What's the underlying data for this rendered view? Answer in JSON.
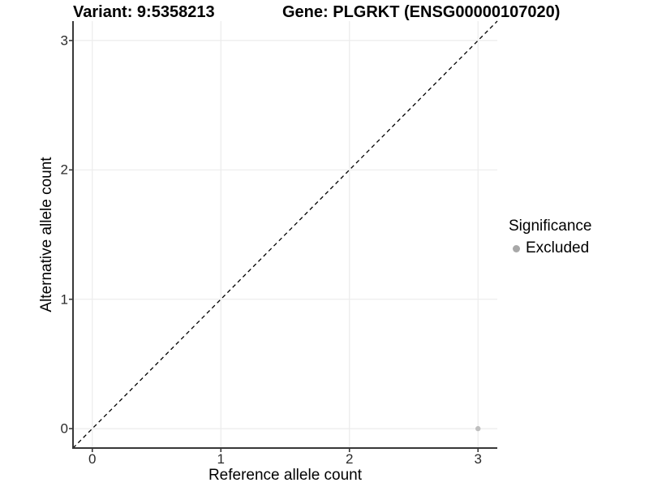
{
  "chart_data": {
    "type": "scatter",
    "title_left": "Variant: 9:5358213",
    "title_right": "Gene: PLGRKT (ENSG00000107020)",
    "xlabel": "Reference allele count",
    "ylabel": "Alternative allele count",
    "xlim": [
      -0.15,
      3.15
    ],
    "ylim": [
      -0.15,
      3.15
    ],
    "xticks": [
      0,
      1,
      2,
      3
    ],
    "yticks": [
      0,
      1,
      2,
      3
    ],
    "grid": {
      "major": true,
      "minor": false
    },
    "reference_line": {
      "type": "identity",
      "slope": 1,
      "intercept": 0,
      "linestyle": "dashed",
      "color": "#000000"
    },
    "series": [
      {
        "name": "Excluded",
        "color": "#bfbfbf",
        "points": [
          {
            "x": 3,
            "y": 0
          }
        ]
      }
    ],
    "legend": {
      "title": "Significance",
      "position": "right",
      "items": [
        {
          "label": "Excluded",
          "color": "#a8a8a8"
        }
      ]
    }
  },
  "colors": {
    "background": "#ffffff",
    "panel_background": "#ffffff",
    "gridline": "#ececec",
    "axis_line": "#383838",
    "tick_mark": "#383838",
    "tick_label": "#2b2b2b",
    "point": "#bfbfbf"
  }
}
